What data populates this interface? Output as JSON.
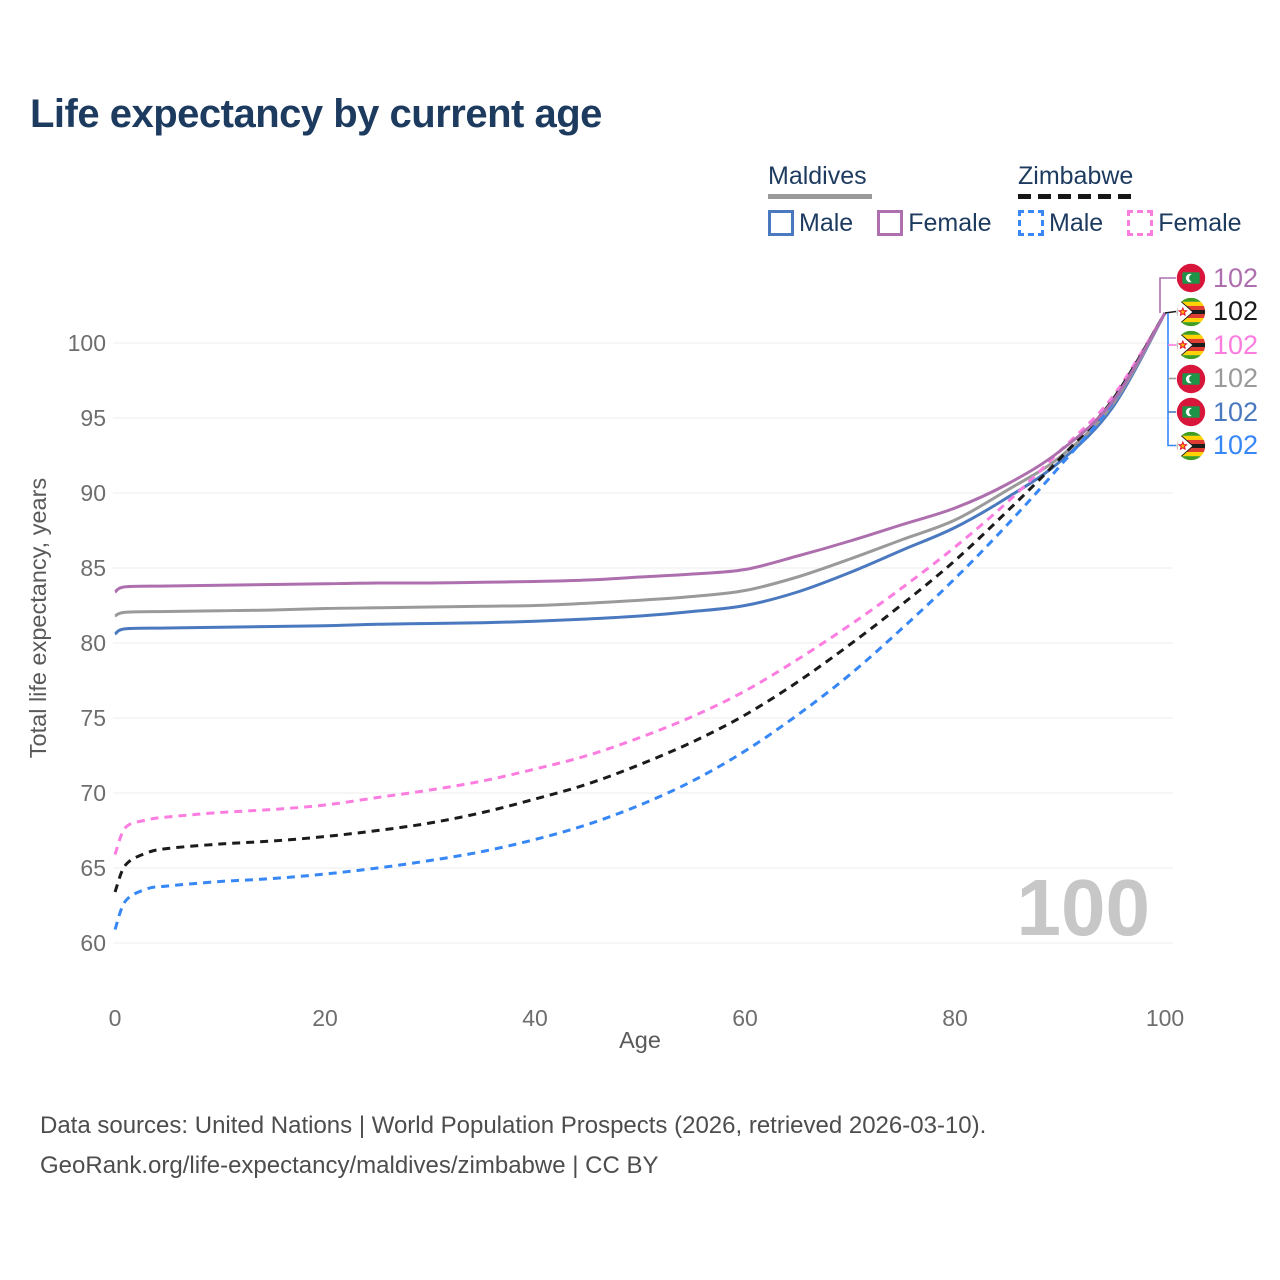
{
  "title": "Life expectancy by current age",
  "legend": {
    "groups": [
      {
        "country": "Maldives",
        "line_style": "solid",
        "underline_color": "#9a9a9a",
        "items": [
          {
            "label": "Male",
            "color": "#4b79bf",
            "dash": false
          },
          {
            "label": "Female",
            "color": "#ae6fae",
            "dash": false
          }
        ]
      },
      {
        "country": "Zimbabwe",
        "line_style": "dashed",
        "underline_color": "#161616",
        "items": [
          {
            "label": "Male",
            "color": "#3787f7",
            "dash": true
          },
          {
            "label": "Female",
            "color": "#fc7de0",
            "dash": true
          }
        ]
      }
    ]
  },
  "chart_data": {
    "type": "line",
    "title": "Life expectancy by current age",
    "xlabel": "Age",
    "ylabel": "Total life expectancy, years",
    "xlim": [
      0,
      100
    ],
    "ylim": [
      60,
      103
    ],
    "x_ticks": [
      0,
      20,
      40,
      60,
      80,
      100
    ],
    "y_ticks": [
      60,
      65,
      70,
      75,
      80,
      85,
      90,
      95,
      100
    ],
    "grid": "horizontal",
    "grid_color": "#ececec",
    "legend_position": "top-right",
    "series": [
      {
        "name": "Maldives Male",
        "country": "Maldives",
        "sex": "Male",
        "color": "#4b79bf",
        "dash": false,
        "points": [
          [
            0,
            80.6
          ],
          [
            1,
            80.95
          ],
          [
            5,
            81.0
          ],
          [
            10,
            81.05
          ],
          [
            15,
            81.1
          ],
          [
            20,
            81.15
          ],
          [
            25,
            81.25
          ],
          [
            30,
            81.3
          ],
          [
            35,
            81.35
          ],
          [
            40,
            81.45
          ],
          [
            45,
            81.6
          ],
          [
            50,
            81.8
          ],
          [
            55,
            82.1
          ],
          [
            60,
            82.5
          ],
          [
            65,
            83.4
          ],
          [
            70,
            84.7
          ],
          [
            75,
            86.2
          ],
          [
            80,
            87.7
          ],
          [
            85,
            89.7
          ],
          [
            90,
            92.1
          ],
          [
            95,
            95.7
          ],
          [
            100,
            102
          ]
        ]
      },
      {
        "name": "Maldives",
        "country": "Maldives",
        "sex": "Both",
        "color": "#9a9a9a",
        "dash": false,
        "points": [
          [
            0,
            81.8
          ],
          [
            1,
            82.05
          ],
          [
            5,
            82.1
          ],
          [
            10,
            82.15
          ],
          [
            15,
            82.2
          ],
          [
            20,
            82.3
          ],
          [
            25,
            82.35
          ],
          [
            30,
            82.4
          ],
          [
            35,
            82.45
          ],
          [
            40,
            82.5
          ],
          [
            45,
            82.65
          ],
          [
            50,
            82.85
          ],
          [
            55,
            83.1
          ],
          [
            60,
            83.5
          ],
          [
            65,
            84.4
          ],
          [
            70,
            85.6
          ],
          [
            75,
            86.9
          ],
          [
            80,
            88.2
          ],
          [
            85,
            90.2
          ],
          [
            90,
            92.4
          ],
          [
            95,
            95.9
          ],
          [
            100,
            102
          ]
        ]
      },
      {
        "name": "Zimbabwe Male",
        "country": "Zimbabwe",
        "sex": "Male",
        "color": "#3787f7",
        "dash": true,
        "points": [
          [
            0,
            60.9
          ],
          [
            1,
            62.8
          ],
          [
            3,
            63.6
          ],
          [
            5,
            63.8
          ],
          [
            10,
            64.1
          ],
          [
            15,
            64.3
          ],
          [
            20,
            64.6
          ],
          [
            25,
            65.0
          ],
          [
            30,
            65.5
          ],
          [
            35,
            66.1
          ],
          [
            40,
            66.9
          ],
          [
            45,
            67.9
          ],
          [
            50,
            69.2
          ],
          [
            55,
            70.8
          ],
          [
            60,
            72.8
          ],
          [
            65,
            75.2
          ],
          [
            70,
            77.9
          ],
          [
            75,
            81.0
          ],
          [
            80,
            84.3
          ],
          [
            85,
            87.9
          ],
          [
            90,
            91.8
          ],
          [
            95,
            96.0
          ],
          [
            100,
            102
          ]
        ]
      },
      {
        "name": "Zimbabwe Female",
        "country": "Zimbabwe",
        "sex": "Female",
        "color": "#fc7de0",
        "dash": true,
        "points": [
          [
            0,
            65.9
          ],
          [
            1,
            67.7
          ],
          [
            3,
            68.2
          ],
          [
            5,
            68.4
          ],
          [
            10,
            68.7
          ],
          [
            15,
            68.9
          ],
          [
            20,
            69.2
          ],
          [
            25,
            69.7
          ],
          [
            30,
            70.2
          ],
          [
            35,
            70.8
          ],
          [
            40,
            71.6
          ],
          [
            45,
            72.5
          ],
          [
            50,
            73.7
          ],
          [
            55,
            75.1
          ],
          [
            60,
            76.8
          ],
          [
            65,
            78.9
          ],
          [
            70,
            81.2
          ],
          [
            75,
            83.7
          ],
          [
            80,
            86.4
          ],
          [
            85,
            89.4
          ],
          [
            90,
            92.8
          ],
          [
            95,
            96.4
          ],
          [
            100,
            102
          ]
        ]
      },
      {
        "name": "Zimbabwe",
        "country": "Zimbabwe",
        "sex": "Both",
        "color": "#1b1b1b",
        "dash": true,
        "points": [
          [
            0,
            63.4
          ],
          [
            1,
            65.2
          ],
          [
            3,
            66.0
          ],
          [
            5,
            66.3
          ],
          [
            10,
            66.6
          ],
          [
            15,
            66.8
          ],
          [
            20,
            67.1
          ],
          [
            25,
            67.5
          ],
          [
            30,
            68.0
          ],
          [
            35,
            68.7
          ],
          [
            40,
            69.6
          ],
          [
            45,
            70.6
          ],
          [
            50,
            71.9
          ],
          [
            55,
            73.4
          ],
          [
            60,
            75.2
          ],
          [
            65,
            77.4
          ],
          [
            70,
            79.9
          ],
          [
            75,
            82.6
          ],
          [
            80,
            85.5
          ],
          [
            85,
            88.8
          ],
          [
            90,
            92.3
          ],
          [
            95,
            96.2
          ],
          [
            100,
            102
          ]
        ]
      },
      {
        "name": "Maldives Female",
        "country": "Maldives",
        "sex": "Female",
        "color": "#ae6fae",
        "dash": false,
        "points": [
          [
            0,
            83.4
          ],
          [
            1,
            83.75
          ],
          [
            5,
            83.8
          ],
          [
            10,
            83.85
          ],
          [
            15,
            83.9
          ],
          [
            20,
            83.95
          ],
          [
            25,
            84.0
          ],
          [
            30,
            84.0
          ],
          [
            35,
            84.05
          ],
          [
            40,
            84.1
          ],
          [
            45,
            84.2
          ],
          [
            50,
            84.4
          ],
          [
            55,
            84.6
          ],
          [
            60,
            84.9
          ],
          [
            65,
            85.8
          ],
          [
            70,
            86.8
          ],
          [
            75,
            87.9
          ],
          [
            80,
            89.0
          ],
          [
            85,
            90.6
          ],
          [
            90,
            92.8
          ],
          [
            95,
            96.1
          ],
          [
            100,
            102
          ]
        ]
      }
    ]
  },
  "end_labels": [
    {
      "flag": "maldives",
      "series": "Maldives Female",
      "value": "102",
      "color": "#ae6fae"
    },
    {
      "flag": "zimbabwe",
      "series": "Zimbabwe",
      "value": "102",
      "color": "#1b1b1b"
    },
    {
      "flag": "zimbabwe",
      "series": "Zimbabwe Female",
      "value": "102",
      "color": "#fc7de0"
    },
    {
      "flag": "maldives",
      "series": "Maldives",
      "value": "102",
      "color": "#9a9a9a"
    },
    {
      "flag": "maldives",
      "series": "Maldives Male",
      "value": "102",
      "color": "#4b79bf"
    },
    {
      "flag": "zimbabwe",
      "series": "Zimbabwe Male",
      "value": "102",
      "color": "#3787f7"
    }
  ],
  "watermark": "100",
  "footer": {
    "line1": "Data sources: United Nations | World Population Prospects (2026, retrieved 2026-03-10).",
    "line2": "GeoRank.org/life-expectancy/maldives/zimbabwe | CC BY"
  }
}
